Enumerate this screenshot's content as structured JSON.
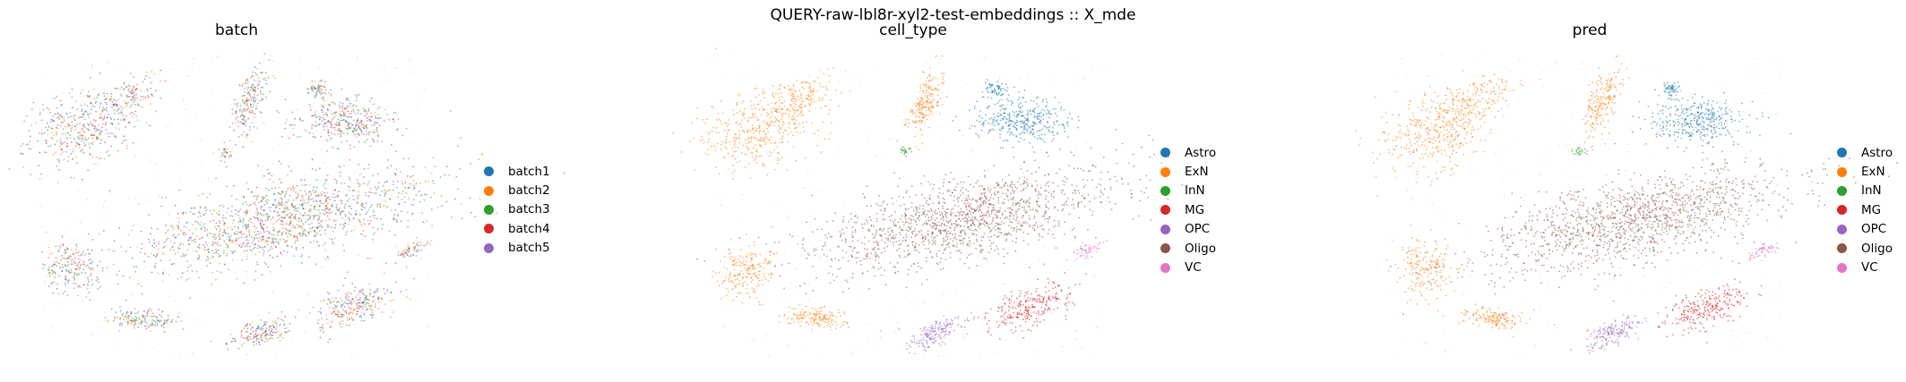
{
  "suptitle": "QUERY-raw-lbl8r-xyl2-test-embeddings :: X_mde",
  "chart_data": [
    {
      "type": "scatter",
      "title": "batch",
      "legend": "right",
      "grid": false,
      "axes_visible": false,
      "categories": [
        "batch1",
        "batch2",
        "batch3",
        "batch4",
        "batch5"
      ],
      "colors": [
        "#1f77b4",
        "#ff7f0e",
        "#2ca02c",
        "#d62728",
        "#9467bd"
      ]
    },
    {
      "type": "scatter",
      "title": "cell_type",
      "legend": "right",
      "grid": false,
      "axes_visible": false,
      "categories": [
        "Astro",
        "ExN",
        "InN",
        "MG",
        "OPC",
        "Oligo",
        "VC"
      ],
      "colors": [
        "#1f77b4",
        "#ff7f0e",
        "#2ca02c",
        "#d62728",
        "#9467bd",
        "#8c564b",
        "#e377c2"
      ]
    },
    {
      "type": "scatter",
      "title": "pred",
      "legend": "right",
      "grid": false,
      "axes_visible": false,
      "categories": [
        "Astro",
        "ExN",
        "InN",
        "MG",
        "OPC",
        "Oligo",
        "VC"
      ],
      "colors": [
        "#1f77b4",
        "#ff7f0e",
        "#2ca02c",
        "#d62728",
        "#9467bd",
        "#8c564b",
        "#e377c2"
      ]
    }
  ]
}
